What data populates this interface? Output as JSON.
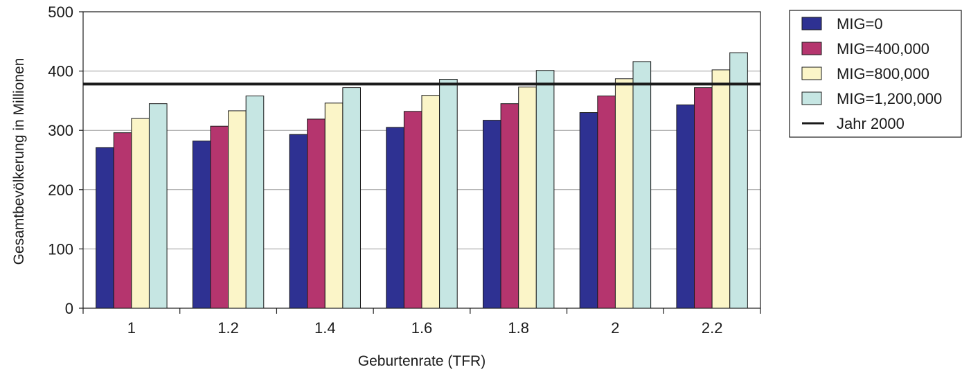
{
  "chart_data": {
    "type": "bar",
    "xlabel": "Geburtenrate (TFR)",
    "ylabel": "Gesamtbevölkerung in Millionen",
    "categories": [
      "1",
      "1.2",
      "1.4",
      "1.6",
      "1.8",
      "2",
      "2.2"
    ],
    "ylim": [
      0,
      500
    ],
    "yticks": [
      "0",
      "100",
      "200",
      "300",
      "400",
      "500"
    ],
    "grid": true,
    "legend_position": "right",
    "series": [
      {
        "name": "MIG=0",
        "color": "#2e3192",
        "values": [
          271,
          282,
          293,
          305,
          317,
          330,
          343
        ]
      },
      {
        "name": "MIG=400,000",
        "color": "#b5356e",
        "values": [
          296,
          307,
          319,
          332,
          345,
          358,
          372
        ]
      },
      {
        "name": "MIG=800,000",
        "color": "#fbf5c8",
        "values": [
          320,
          333,
          346,
          359,
          373,
          387,
          402
        ]
      },
      {
        "name": "MIG=1,200,000",
        "color": "#c6e6e3",
        "values": [
          345,
          358,
          372,
          386,
          401,
          416,
          431
        ]
      }
    ],
    "reference_line": {
      "name": "Jahr 2000",
      "value": 378,
      "color": "#1a1a1a"
    }
  }
}
